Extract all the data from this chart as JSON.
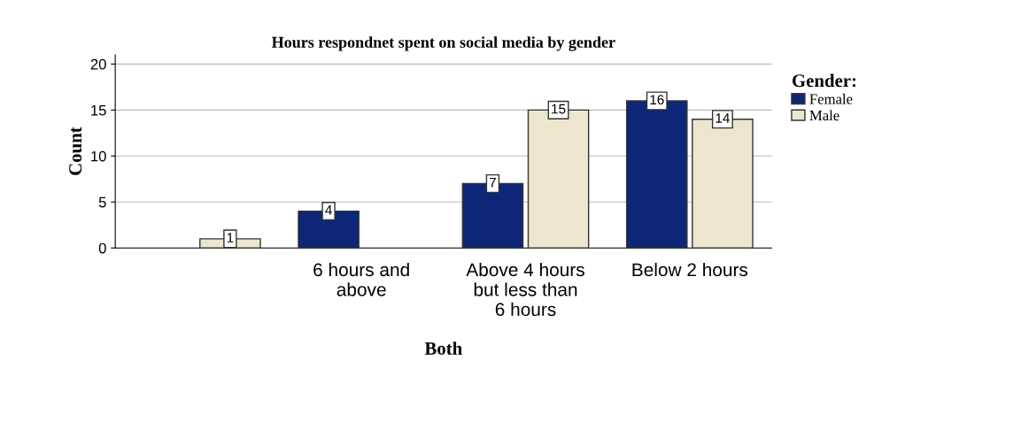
{
  "chart_data": {
    "type": "bar",
    "title": "Hours respondnet spent on social media by gender",
    "categories": [
      null,
      "6 hours and above",
      "Above 4 hours but less than 6 hours",
      "Below 2 hours"
    ],
    "series": [
      {
        "name": "Female",
        "color": "#0d2677",
        "values": [
          null,
          4,
          7,
          16
        ]
      },
      {
        "name": "Male",
        "color": "#ece6cf",
        "values": [
          1,
          null,
          15,
          14
        ]
      }
    ],
    "xlabel": "Both",
    "ylabel": "Count",
    "legend_title": "Gender:",
    "ylim": [
      0,
      21
    ],
    "yticks": [
      0,
      5,
      10,
      15,
      20
    ],
    "grid": "y",
    "legend": "right",
    "data_labels": true
  }
}
